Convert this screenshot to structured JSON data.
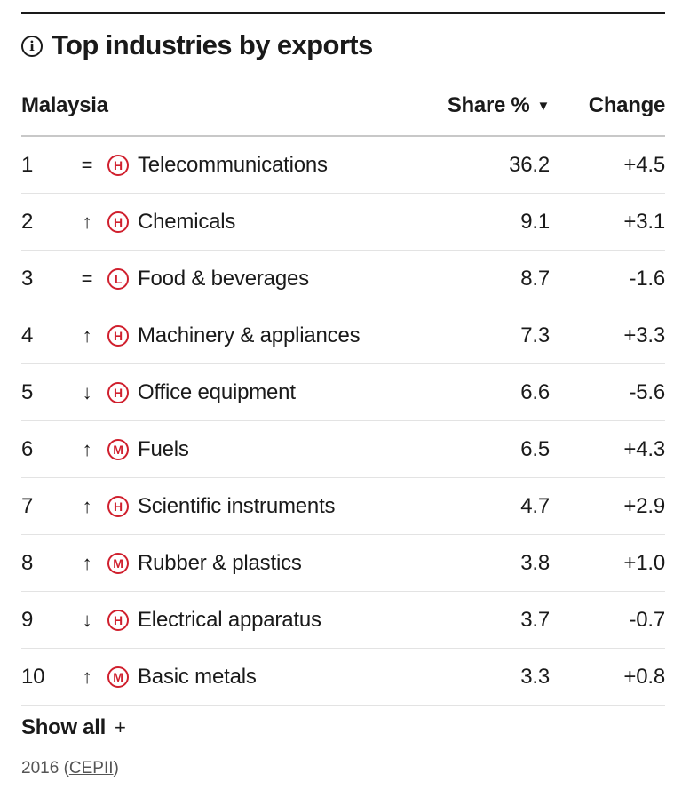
{
  "widget": {
    "title": "Top industries by exports",
    "info_icon": "info-circle-icon",
    "columns": {
      "country": "Malaysia",
      "share": "Share %",
      "sort_indicator": "▼",
      "change": "Change"
    },
    "rows": [
      {
        "rank": "1",
        "trend": "=",
        "level": "H",
        "industry": "Telecommunications",
        "share": "36.2",
        "change": "+4.5"
      },
      {
        "rank": "2",
        "trend": "↑",
        "level": "H",
        "industry": "Chemicals",
        "share": "9.1",
        "change": "+3.1"
      },
      {
        "rank": "3",
        "trend": "=",
        "level": "L",
        "industry": "Food & beverages",
        "share": "8.7",
        "change": "-1.6"
      },
      {
        "rank": "4",
        "trend": "↑",
        "level": "H",
        "industry": "Machinery & appliances",
        "share": "7.3",
        "change": "+3.3"
      },
      {
        "rank": "5",
        "trend": "↓",
        "level": "H",
        "industry": "Office equipment",
        "share": "6.6",
        "change": "-5.6"
      },
      {
        "rank": "6",
        "trend": "↑",
        "level": "M",
        "industry": "Fuels",
        "share": "6.5",
        "change": "+4.3"
      },
      {
        "rank": "7",
        "trend": "↑",
        "level": "H",
        "industry": "Scientific instruments",
        "share": "4.7",
        "change": "+2.9"
      },
      {
        "rank": "8",
        "trend": "↑",
        "level": "M",
        "industry": "Rubber & plastics",
        "share": "3.8",
        "change": "+1.0"
      },
      {
        "rank": "9",
        "trend": "↓",
        "level": "H",
        "industry": "Electrical apparatus",
        "share": "3.7",
        "change": "-0.7"
      },
      {
        "rank": "10",
        "trend": "↑",
        "level": "M",
        "industry": "Basic metals",
        "share": "3.3",
        "change": "+0.8"
      }
    ],
    "show_all": {
      "label": "Show all",
      "plus": "+"
    },
    "source": {
      "year": "2016",
      "open_paren": "(",
      "link_text": "CEPII",
      "close_paren": ")"
    },
    "colors": {
      "accent": "#d0202e",
      "text": "#1a1a1a",
      "muted": "#555555"
    }
  }
}
